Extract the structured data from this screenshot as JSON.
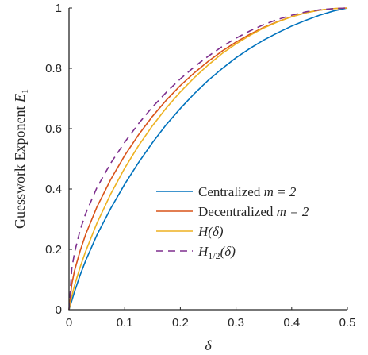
{
  "chart_data": {
    "type": "line",
    "title": "",
    "xlabel": "δ",
    "ylabel": "Guesswork Exponent E",
    "ylabel_sub": "1",
    "xlim": [
      0,
      0.5
    ],
    "ylim": [
      0,
      1
    ],
    "xticks": [
      "0",
      "0.1",
      "0.2",
      "0.3",
      "0.4",
      "0.5"
    ],
    "yticks": [
      "0",
      "0.2",
      "0.4",
      "0.6",
      "0.8",
      "1"
    ],
    "grid": false,
    "legend_position": "lower-right",
    "x": [
      0,
      0.005,
      0.01,
      0.02,
      0.03,
      0.05,
      0.075,
      0.1,
      0.125,
      0.15,
      0.175,
      0.2,
      0.225,
      0.25,
      0.275,
      0.3,
      0.325,
      0.35,
      0.375,
      0.4,
      0.425,
      0.45,
      0.475,
      0.5
    ],
    "series": [
      {
        "name": "Centralized m = 2",
        "color": "#0072BD",
        "dashed": false,
        "values": [
          0,
          0.03,
          0.06,
          0.115,
          0.163,
          0.247,
          0.336,
          0.416,
          0.488,
          0.554,
          0.614,
          0.667,
          0.716,
          0.76,
          0.799,
          0.835,
          0.866,
          0.894,
          0.918,
          0.94,
          0.959,
          0.976,
          0.99,
          1.0
        ]
      },
      {
        "name": "Decentralized m = 2",
        "color": "#D95319",
        "dashed": false,
        "values": [
          0,
          0.085,
          0.13,
          0.195,
          0.25,
          0.34,
          0.432,
          0.511,
          0.58,
          0.641,
          0.695,
          0.743,
          0.785,
          0.823,
          0.857,
          0.887,
          0.913,
          0.936,
          0.955,
          0.971,
          0.984,
          0.993,
          0.998,
          1.0
        ]
      },
      {
        "name": "H(δ)",
        "color": "#EDB120",
        "dashed": false,
        "values": [
          0,
          0.045,
          0.081,
          0.141,
          0.194,
          0.286,
          0.384,
          0.469,
          0.544,
          0.61,
          0.669,
          0.722,
          0.769,
          0.811,
          0.849,
          0.881,
          0.909,
          0.934,
          0.954,
          0.971,
          0.984,
          0.993,
          0.998,
          1.0
        ]
      },
      {
        "name": "H1/2(δ)",
        "color": "#7E2F8E",
        "dashed": true,
        "values": [
          0,
          0.136,
          0.19,
          0.264,
          0.319,
          0.404,
          0.486,
          0.555,
          0.617,
          0.672,
          0.721,
          0.765,
          0.805,
          0.84,
          0.872,
          0.9,
          0.924,
          0.945,
          0.962,
          0.976,
          0.987,
          0.994,
          0.998,
          1.0
        ]
      }
    ]
  },
  "legend": {
    "items": [
      {
        "text": "Centralized ",
        "math": "m = 2",
        "sub": ""
      },
      {
        "text": "Decentralized ",
        "math": "m = 2",
        "sub": ""
      },
      {
        "text": "",
        "math": "H(δ)",
        "sub": ""
      },
      {
        "text": "",
        "math": "H",
        "sub": "1/2",
        "tail": "(δ)"
      }
    ]
  }
}
